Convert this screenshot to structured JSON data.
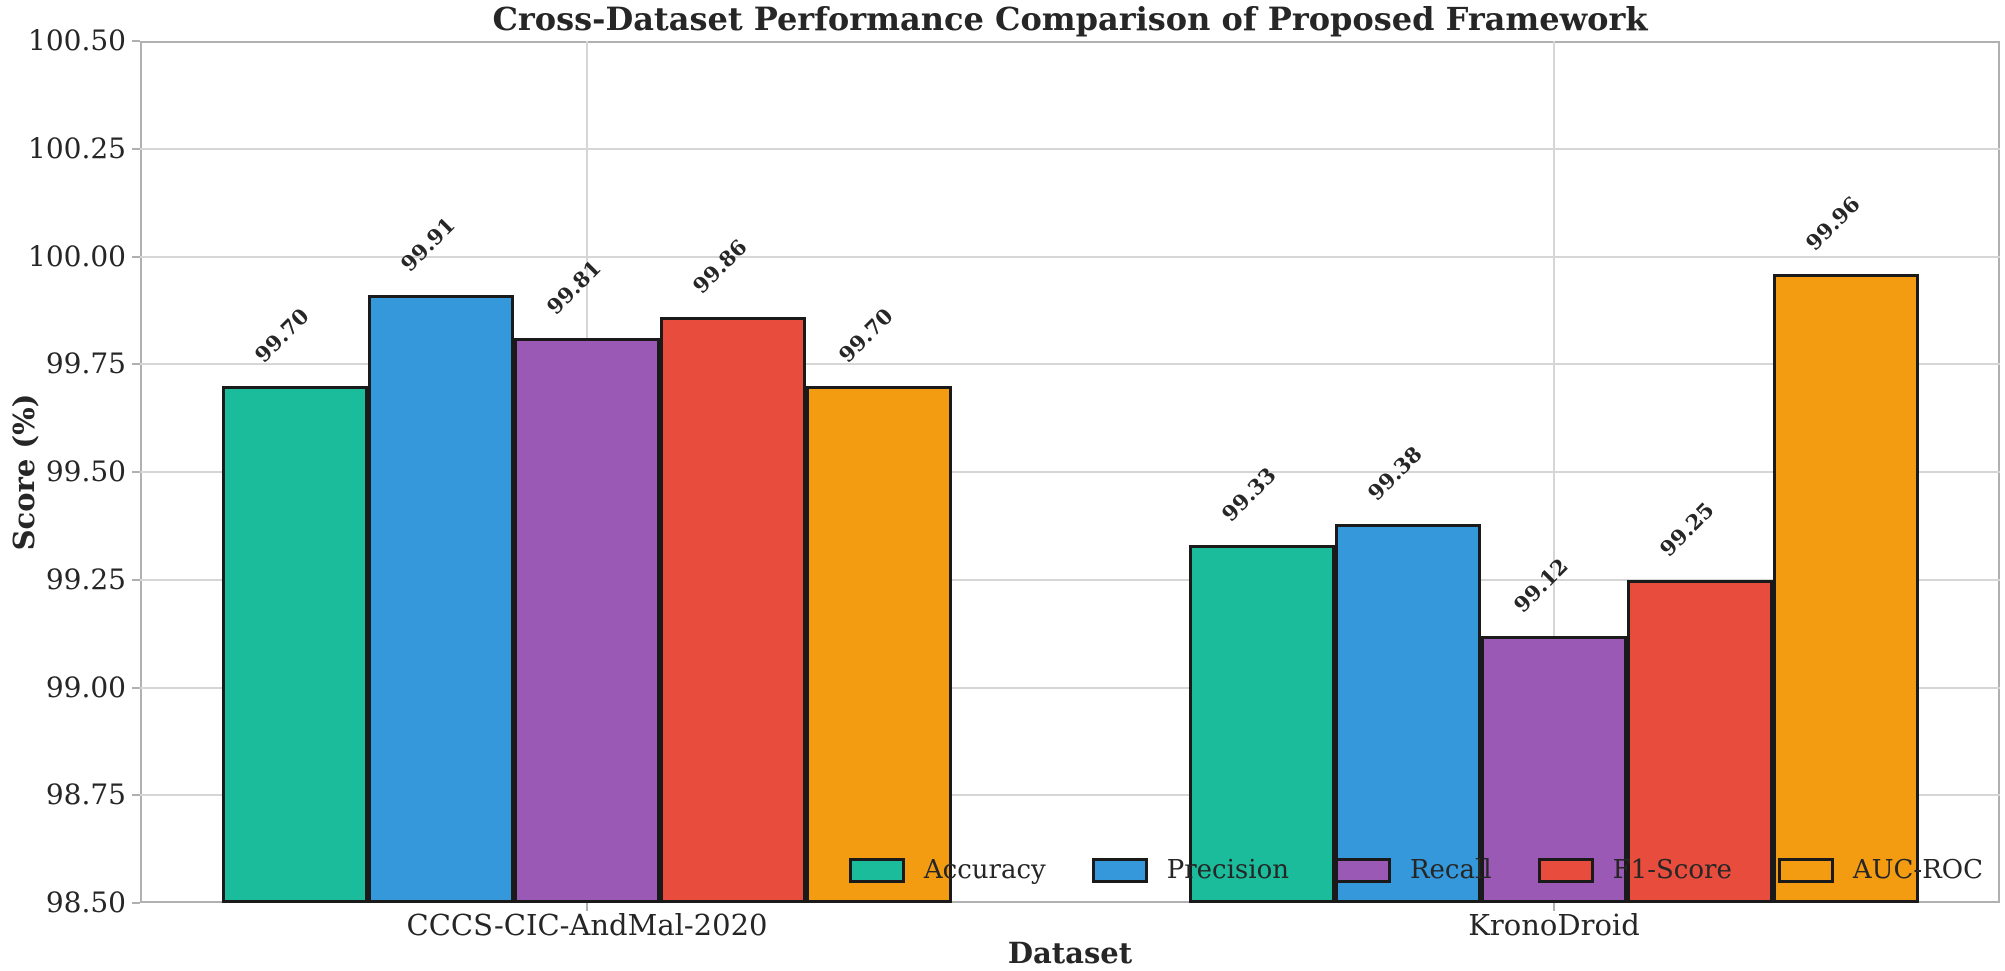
{
  "chart_data": {
    "type": "bar",
    "title": "Cross-Dataset Performance Comparison of Proposed Framework",
    "xlabel": "Dataset",
    "ylabel": "Score (%)",
    "categories": [
      "CCCS-CIC-AndMal-2020",
      "KronoDroid"
    ],
    "series": [
      {
        "name": "Accuracy",
        "color": "#1abc9c",
        "values": [
          99.7,
          99.33
        ]
      },
      {
        "name": "Precision",
        "color": "#3498db",
        "values": [
          99.91,
          99.38
        ]
      },
      {
        "name": "Recall",
        "color": "#9b59b6",
        "values": [
          99.81,
          99.12
        ]
      },
      {
        "name": "F1-Score",
        "color": "#e74c3c",
        "values": [
          99.86,
          99.25
        ]
      },
      {
        "name": "AUC-ROC",
        "color": "#f39c12",
        "values": [
          99.7,
          99.96
        ]
      }
    ],
    "bar_value_labels": [
      [
        "99.70",
        "99.91",
        "99.81",
        "99.86",
        "99.70"
      ],
      [
        "99.33",
        "99.38",
        "99.12",
        "99.25",
        "99.96"
      ]
    ],
    "ylim": [
      98.5,
      100.5
    ],
    "ytick_labels": [
      "100.50",
      "100.25",
      "100.00",
      "99.75",
      "99.50",
      "99.25",
      "99.00",
      "98.75",
      "98.50"
    ],
    "grid": true,
    "legend": {
      "position": "lower right",
      "frame": false
    },
    "colors": {
      "bar_edge": "#1a1a1a",
      "grid": "#d6d6d6",
      "spine": "#b0b0b0",
      "text": "#262626",
      "background": "#ffffff"
    }
  }
}
